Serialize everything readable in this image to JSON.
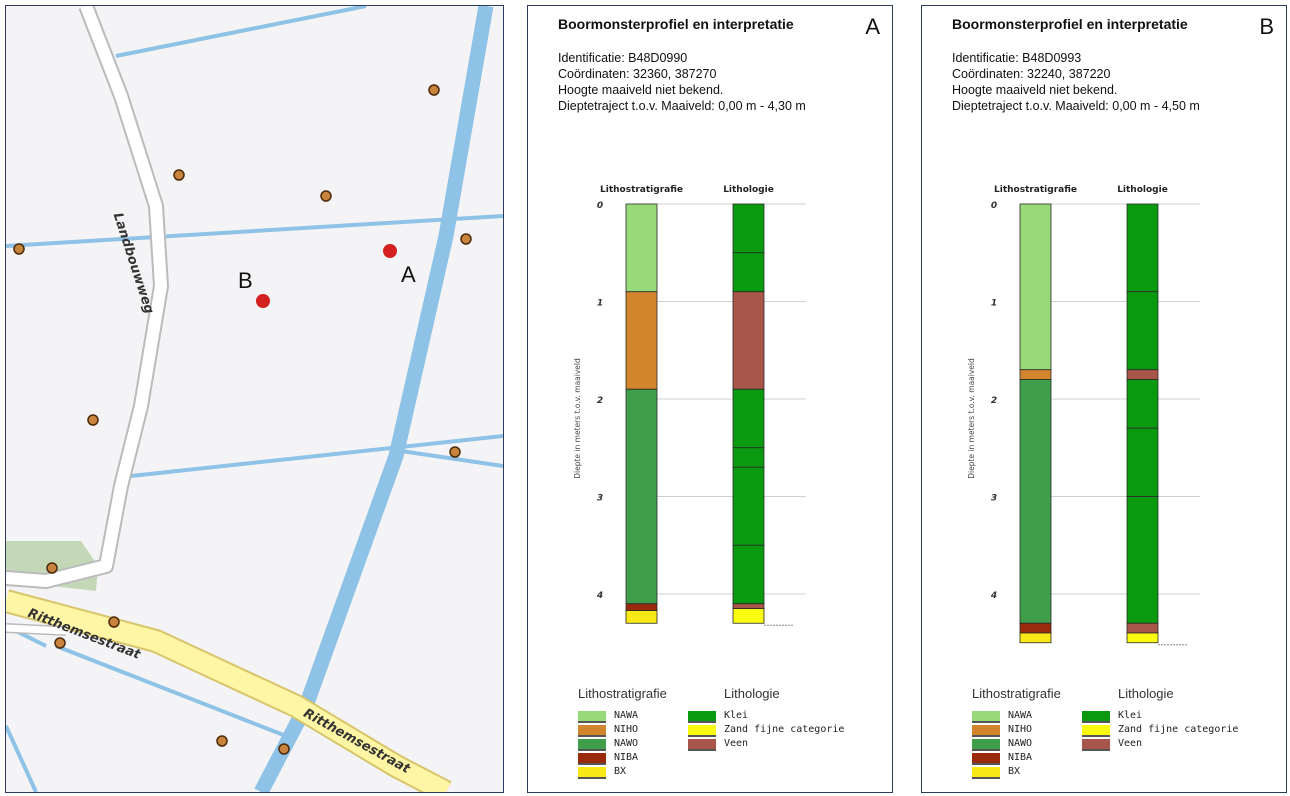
{
  "map": {
    "point_a_label": "A",
    "point_b_label": "B",
    "streets": [
      "Landbouwweg",
      "Ritthemsestraat",
      "Ritthemsestraat"
    ],
    "colors": {
      "water": "#8ec2e6",
      "road_fill": "#fff6a5",
      "road_edge": "#d8c46a",
      "point": "#c8843c",
      "target": "#d42020"
    }
  },
  "panels": [
    {
      "letter": "A",
      "title": "Boormonsterprofiel en interpretatie",
      "info": [
        "Identificatie: B48D0990",
        "Coördinaten: 32360, 387270",
        "Hoogte maaiveld niet bekend.",
        "Dieptetraject t.o.v. Maaiveld: 0,00 m - 4,30 m"
      ],
      "chart_data": {
        "type": "table",
        "columns": [
          "Lithostratigrafie",
          "Lithologie"
        ],
        "ylabel": "Diepte in meters t.o.v. maaiveld",
        "ylim": [
          0,
          4.3
        ],
        "yticks": [
          0,
          1,
          2,
          3,
          4
        ],
        "litho_strat": [
          {
            "from": 0,
            "to": 0.9,
            "unit": "NAWA"
          },
          {
            "from": 0.9,
            "to": 1.9,
            "unit": "NIHO"
          },
          {
            "from": 1.9,
            "to": 4.1,
            "unit": "NAWO"
          },
          {
            "from": 4.1,
            "to": 4.17,
            "unit": "NIBA"
          },
          {
            "from": 4.17,
            "to": 4.3,
            "unit": "BX"
          }
        ],
        "lithology": [
          {
            "from": 0,
            "to": 0.5,
            "unit": "Klei"
          },
          {
            "from": 0.5,
            "to": 0.9,
            "unit": "Klei"
          },
          {
            "from": 0.9,
            "to": 1.9,
            "unit": "Veen"
          },
          {
            "from": 1.9,
            "to": 2.5,
            "unit": "Klei"
          },
          {
            "from": 2.5,
            "to": 2.7,
            "unit": "Klei"
          },
          {
            "from": 2.7,
            "to": 3.5,
            "unit": "Klei"
          },
          {
            "from": 3.5,
            "to": 4.1,
            "unit": "Klei"
          },
          {
            "from": 4.1,
            "to": 4.15,
            "unit": "Veen"
          },
          {
            "from": 4.15,
            "to": 4.3,
            "unit": "Zand fijne categorie"
          }
        ]
      }
    },
    {
      "letter": "B",
      "title": "Boormonsterprofiel en interpretatie",
      "info": [
        "Identificatie: B48D0993",
        "Coördinaten: 32240, 387220",
        "Hoogte maaiveld niet bekend.",
        "Dieptetraject t.o.v. Maaiveld: 0,00 m - 4,50 m"
      ],
      "chart_data": {
        "type": "table",
        "columns": [
          "Lithostratigrafie",
          "Lithologie"
        ],
        "ylabel": "Diepte in meters t.o.v. maaiveld",
        "ylim": [
          0,
          4.5
        ],
        "yticks": [
          0,
          1,
          2,
          3,
          4
        ],
        "litho_strat": [
          {
            "from": 0,
            "to": 1.7,
            "unit": "NAWA"
          },
          {
            "from": 1.7,
            "to": 1.8,
            "unit": "NIHO"
          },
          {
            "from": 1.8,
            "to": 4.3,
            "unit": "NAWO"
          },
          {
            "from": 4.3,
            "to": 4.4,
            "unit": "NIBA"
          },
          {
            "from": 4.4,
            "to": 4.5,
            "unit": "BX"
          }
        ],
        "lithology": [
          {
            "from": 0,
            "to": 0.9,
            "unit": "Klei"
          },
          {
            "from": 0.9,
            "to": 1.7,
            "unit": "Klei"
          },
          {
            "from": 1.7,
            "to": 1.8,
            "unit": "Veen"
          },
          {
            "from": 1.8,
            "to": 2.3,
            "unit": "Klei"
          },
          {
            "from": 2.3,
            "to": 3.0,
            "unit": "Klei"
          },
          {
            "from": 3.0,
            "to": 4.3,
            "unit": "Klei"
          },
          {
            "from": 4.3,
            "to": 4.4,
            "unit": "Veen"
          },
          {
            "from": 4.4,
            "to": 4.5,
            "unit": "Zand fijne categorie"
          }
        ]
      }
    }
  ],
  "legend": {
    "strat_title": "Lithostratigrafie",
    "litho_title": "Lithologie",
    "strat_items": [
      {
        "label": "NAWA",
        "color": "#98d97a"
      },
      {
        "label": "NIHO",
        "color": "#d2852c"
      },
      {
        "label": "NAWO",
        "color": "#3f9e4a"
      },
      {
        "label": "NIBA",
        "color": "#9a2a0c"
      },
      {
        "label": "BX",
        "color": "#f7e816"
      }
    ],
    "litho_items": [
      {
        "label": "Klei",
        "color": "#0a9a10"
      },
      {
        "label": "Zand fijne categorie",
        "color": "#fbfb12"
      },
      {
        "label": "Veen",
        "color": "#a8564a"
      }
    ]
  }
}
